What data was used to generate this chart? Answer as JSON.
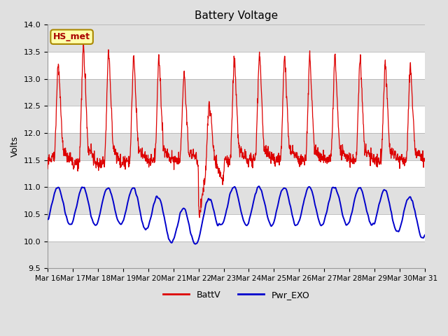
{
  "title": "Battery Voltage",
  "ylabel": "Volts",
  "ylim": [
    9.5,
    14.0
  ],
  "yticks": [
    9.5,
    10.0,
    10.5,
    11.0,
    11.5,
    12.0,
    12.5,
    13.0,
    13.5,
    14.0
  ],
  "xtick_labels": [
    "Mar 16",
    "Mar 17",
    "Mar 18",
    "Mar 19",
    "Mar 20",
    "Mar 21",
    "Mar 22",
    "Mar 23",
    "Mar 24",
    "Mar 25",
    "Mar 26",
    "Mar 27",
    "Mar 28",
    "Mar 29",
    "Mar 30",
    "Mar 31"
  ],
  "bg_color": "#e0e0e0",
  "band_color": "#f0f0f0",
  "line1_color": "#dd0000",
  "line2_color": "#0000cc",
  "legend_entries": [
    "BattV",
    "Pwr_EXO"
  ],
  "annotation_text": "HS_met",
  "annotation_bg": "#ffffaa",
  "annotation_border": "#aa8800"
}
